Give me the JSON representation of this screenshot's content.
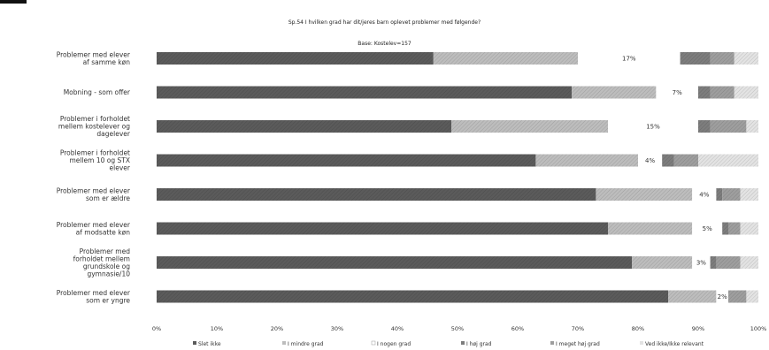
{
  "chart_data": {
    "type": "bar",
    "orientation": "horizontal",
    "stacked": true,
    "title": "Sp.54 I hvilken grad har dit/jeres barn oplevet problemer med følgende?",
    "subtitle": "Base: Kostelev=157",
    "xlim": [
      0,
      100
    ],
    "x_ticks": [
      "0%",
      "10%",
      "20%",
      "30%",
      "40%",
      "50%",
      "60%",
      "70%",
      "80%",
      "90%",
      "100%"
    ],
    "categories": [
      "Problemer med elever af samme køn",
      "Mobning - som offer",
      "Problemer i forholdet mellem kostelever og dagelever",
      "Problemer i forholdet mellem 10 og STX elever",
      "Problemer med elever som er ældre",
      "Problemer med elever af modsatte køn",
      "Problemer med forholdet mellem grundskole og gymnasie/10",
      "Problemer med elever som er yngre"
    ],
    "series": [
      {
        "name": "Slet ikke",
        "color": "#5b5b5b",
        "values": [
          46,
          69,
          49,
          63,
          73,
          75,
          79,
          85
        ]
      },
      {
        "name": "I mindre grad",
        "color": "#bdbdbd",
        "values": [
          24,
          14,
          26,
          17,
          16,
          14,
          10,
          8
        ]
      },
      {
        "name": "I nogen grad",
        "color": "#ffffff",
        "values": [
          17,
          7,
          15,
          4,
          4,
          5,
          3,
          2
        ]
      },
      {
        "name": "I høj grad",
        "color": "#7d7d7d",
        "values": [
          5,
          2,
          2,
          2,
          1,
          1,
          1,
          0
        ]
      },
      {
        "name": "I meget høj grad",
        "color": "#9e9e9e",
        "values": [
          4,
          4,
          6,
          4,
          3,
          2,
          4,
          3
        ]
      },
      {
        "name": "Ved ikke/Ikke relevant",
        "color": "#e3e3e3",
        "values": [
          4,
          4,
          2,
          10,
          3,
          3,
          3,
          2
        ]
      }
    ],
    "gap_labels": [
      "17%",
      "7%",
      "15%",
      "4%",
      "4%",
      "5%",
      "3%",
      "2%"
    ],
    "legend": {
      "position": "bottom",
      "items": [
        "Slet ikke",
        "I mindre grad",
        "I nogen grad",
        "I høj grad",
        "I meget høj grad",
        "Ved ikke/Ikke relevant"
      ]
    },
    "grid": false
  }
}
